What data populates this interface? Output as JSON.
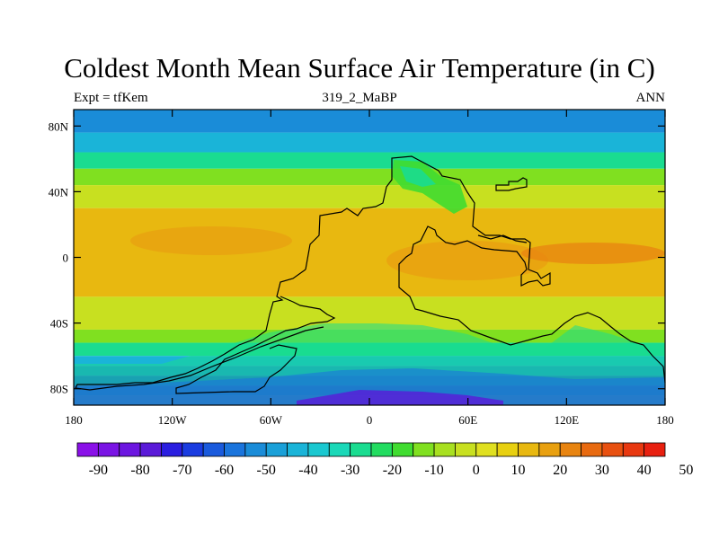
{
  "title": "Coldest Month Mean Surface Air Temperature (in C)",
  "subtitle_left": "Expt = tfKem",
  "subtitle_center": "319_2_MaBP",
  "subtitle_right": "ANN",
  "axes": {
    "y_ticks": [
      "80N",
      "40N",
      "0",
      "40S",
      "80S"
    ],
    "y_tick_values": [
      80,
      40,
      0,
      -40,
      -80
    ],
    "x_ticks": [
      "180",
      "120W",
      "60W",
      "0",
      "60E",
      "120E",
      "180"
    ],
    "x_tick_values": [
      -180,
      -120,
      -60,
      0,
      60,
      120,
      180
    ],
    "lon_range": [
      -180,
      180
    ],
    "lat_range": [
      -90,
      90
    ]
  },
  "colorbar": {
    "labels": [
      "-90",
      "-80",
      "-70",
      "-60",
      "-50",
      "-40",
      "-30",
      "-20",
      "-10",
      "0",
      "10",
      "20",
      "30",
      "40",
      "50"
    ],
    "colors": [
      "#8a10e8",
      "#7a14e4",
      "#6c16e0",
      "#5a1ad8",
      "#2a1ee0",
      "#1a3ce0",
      "#1a5adc",
      "#1a74dc",
      "#1a8cd8",
      "#1aa0d8",
      "#1ab4d8",
      "#1ac8d0",
      "#1ad8b8",
      "#1adc90",
      "#22dc60",
      "#40dc30",
      "#80e020",
      "#a8e020",
      "#c8e020",
      "#e0e020",
      "#e8d010",
      "#e8b810",
      "#e8a010",
      "#e88410",
      "#e86a10",
      "#e85010",
      "#e83810",
      "#e82010"
    ]
  },
  "map": {
    "bands": [
      {
        "lat_top": 90,
        "lat_bottom": 76,
        "color": "#1a8cd8"
      },
      {
        "lat_top": 76,
        "lat_bottom": 64,
        "color": "#1ab4d8"
      },
      {
        "lat_top": 64,
        "lat_bottom": 54,
        "color": "#1adc90"
      },
      {
        "lat_top": 54,
        "lat_bottom": 44,
        "color": "#80e020"
      },
      {
        "lat_top": 44,
        "lat_bottom": 30,
        "color": "#c8e020"
      },
      {
        "lat_top": 30,
        "lat_bottom": -24,
        "color": "#e8b810"
      },
      {
        "lat_top": -24,
        "lat_bottom": -44,
        "color": "#c8e020"
      },
      {
        "lat_top": -44,
        "lat_bottom": -52,
        "color": "#80e020"
      },
      {
        "lat_top": -52,
        "lat_bottom": -60,
        "color": "#1adc90"
      },
      {
        "lat_top": -60,
        "lat_bottom": -66,
        "color": "#1ab4d8"
      },
      {
        "lat_top": -66,
        "lat_bottom": -72,
        "color": "#1a8cd8"
      },
      {
        "lat_top": -72,
        "lat_bottom": -78,
        "color": "#1a5adc"
      },
      {
        "lat_top": -78,
        "lat_bottom": -84,
        "color": "#2a1ee0"
      },
      {
        "lat_top": -84,
        "lat_bottom": -90,
        "color": "#5a1ad8"
      }
    ]
  }
}
